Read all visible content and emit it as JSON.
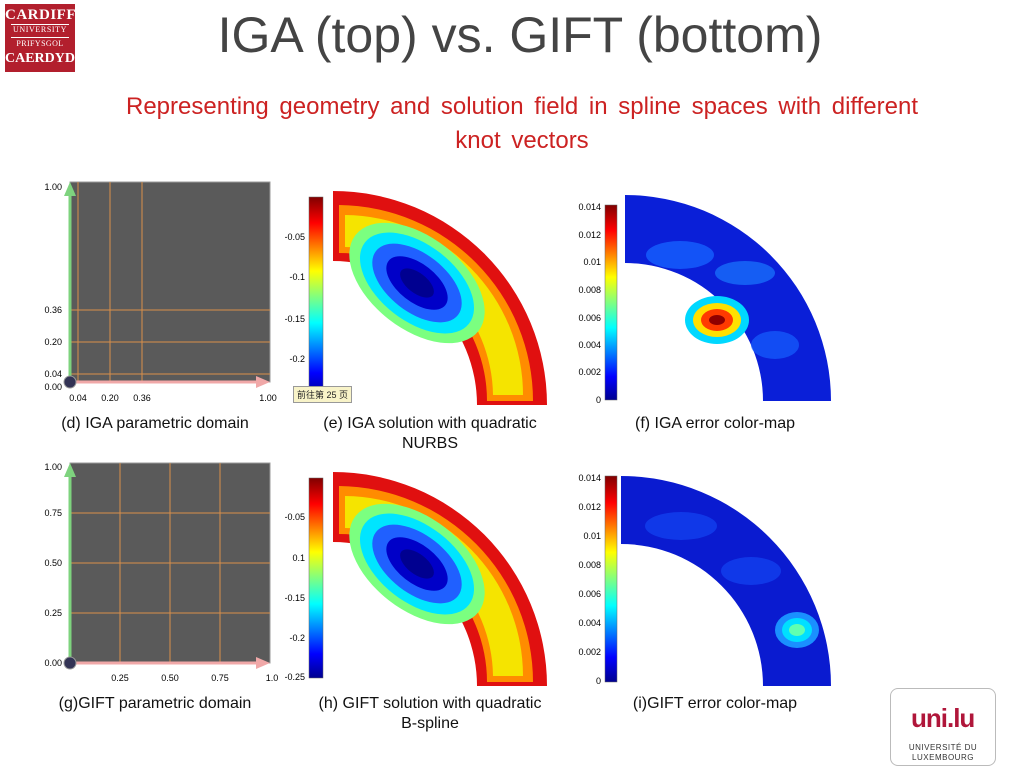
{
  "logo": {
    "line1": "CARDIFF",
    "line2": "UNIVERSITY",
    "line3": "PRIFYSGOL",
    "line4": "CAERDYD"
  },
  "title": "IGA (top) vs. GIFT (bottom)",
  "subtitle_line1": "Representing geometry and solution field in spline spaces with different",
  "subtitle_line2": "knot vectors",
  "tooltip": "前往第 25 页",
  "panels": {
    "d": {
      "caption": "(d) IGA parametric domain",
      "yticks": [
        "1.00",
        "0.36",
        "0.20",
        "0.04",
        "0.00"
      ],
      "xticks": [
        "0.04",
        "0.20",
        "0.36",
        "1.00"
      ]
    },
    "e": {
      "caption_line1": "(e) IGA solution with quadratic",
      "caption_line2": "NURBS",
      "colorbar": [
        "-0.05",
        "-0.1",
        "-0.15",
        "-0.2"
      ]
    },
    "f": {
      "caption": "(f) IGA error color-map",
      "colorbar": [
        "0.014",
        "0.012",
        "0.01",
        "0.008",
        "0.006",
        "0.004",
        "0.002",
        "0"
      ]
    },
    "g": {
      "caption": "(g)GIFT parametric domain",
      "yticks": [
        "1.00",
        "0.75",
        "0.50",
        "0.25",
        "0.00"
      ],
      "xticks": [
        "0.25",
        "0.50",
        "0.75",
        "1.0"
      ]
    },
    "h": {
      "caption_line1": "(h) GIFT solution with quadratic",
      "caption_line2": "B-spline",
      "colorbar": [
        "-0.05",
        "0.1",
        "-0.15",
        "-0.2",
        "-0.25"
      ]
    },
    "i": {
      "caption": "(i)GIFT error color-map",
      "colorbar": [
        "0.014",
        "0.012",
        "0.01",
        "0.008",
        "0.006",
        "0.004",
        "0.002",
        "0"
      ]
    }
  },
  "unilu": {
    "mark": "uni.lu",
    "line1": "UNIVERSITÉ DU",
    "line2": "LUXEMBOURG"
  }
}
